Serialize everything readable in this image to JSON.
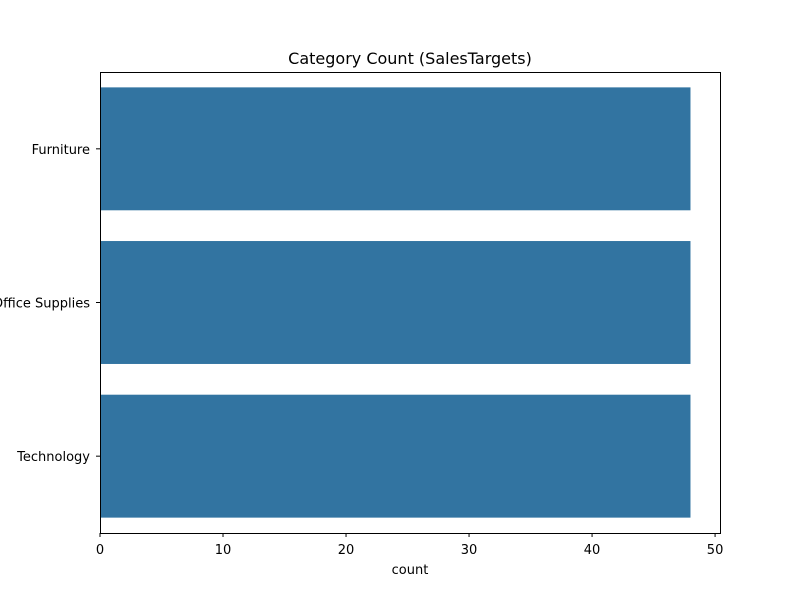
{
  "chart_data": {
    "type": "bar",
    "orientation": "horizontal",
    "title": "Category Count (SalesTargets)",
    "xlabel": "count",
    "ylabel": "",
    "categories": [
      "Furniture",
      "Office Supplies",
      "Technology"
    ],
    "values": [
      48,
      48,
      48
    ],
    "xlim": [
      0,
      50.4
    ],
    "xticks": [
      0,
      10,
      20,
      30,
      40,
      50
    ],
    "grid": false,
    "legend": "none",
    "bar_color": "#3274a1"
  }
}
